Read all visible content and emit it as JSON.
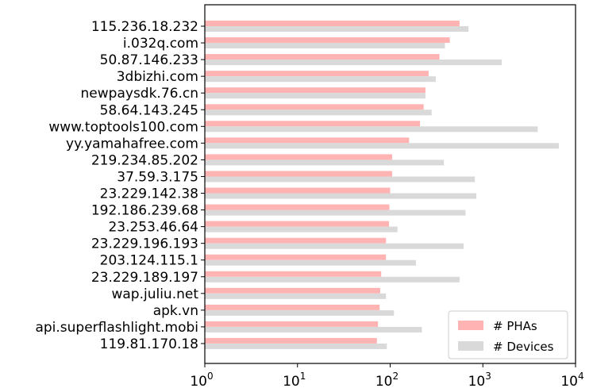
{
  "chart_data": {
    "type": "bar",
    "orientation": "horizontal",
    "title": "",
    "xlabel": "",
    "ylabel": "",
    "x_scale": "log",
    "xlim": [
      1,
      10000
    ],
    "x_ticks": [
      {
        "value": 1,
        "base": "10",
        "exp": "0"
      },
      {
        "value": 10,
        "base": "10",
        "exp": "1"
      },
      {
        "value": 100,
        "base": "10",
        "exp": "2"
      },
      {
        "value": 1000,
        "base": "10",
        "exp": "3"
      },
      {
        "value": 10000,
        "base": "10",
        "exp": "4"
      }
    ],
    "grid": false,
    "legend_position": "lower-right",
    "categories": [
      "115.236.18.232",
      "i.032q.com",
      "50.87.146.233",
      "3dbizhi.com",
      "newpaysdk.76.cn",
      "58.64.143.245",
      "www.toptools100.com",
      "yy.yamahafree.com",
      "219.234.85.202",
      "37.59.3.175",
      "23.229.142.38",
      "192.186.239.68",
      "23.253.46.64",
      "23.229.196.193",
      "203.124.115.1",
      "23.229.189.197",
      "wap.juliu.net",
      "apk.vn",
      "api.superflashlight.mobi",
      "119.81.170.18"
    ],
    "series": [
      {
        "name": "# PHAs",
        "color": "#ffb3b3",
        "values": [
          560,
          440,
          340,
          260,
          240,
          230,
          210,
          160,
          105,
          105,
          100,
          98,
          97,
          90,
          90,
          80,
          78,
          77,
          74,
          72
        ]
      },
      {
        "name": "# Devices",
        "color": "#d9d9d9",
        "values": [
          700,
          390,
          1600,
          310,
          240,
          280,
          3900,
          6600,
          380,
          820,
          850,
          650,
          120,
          620,
          190,
          560,
          90,
          110,
          220,
          92
        ]
      }
    ]
  }
}
